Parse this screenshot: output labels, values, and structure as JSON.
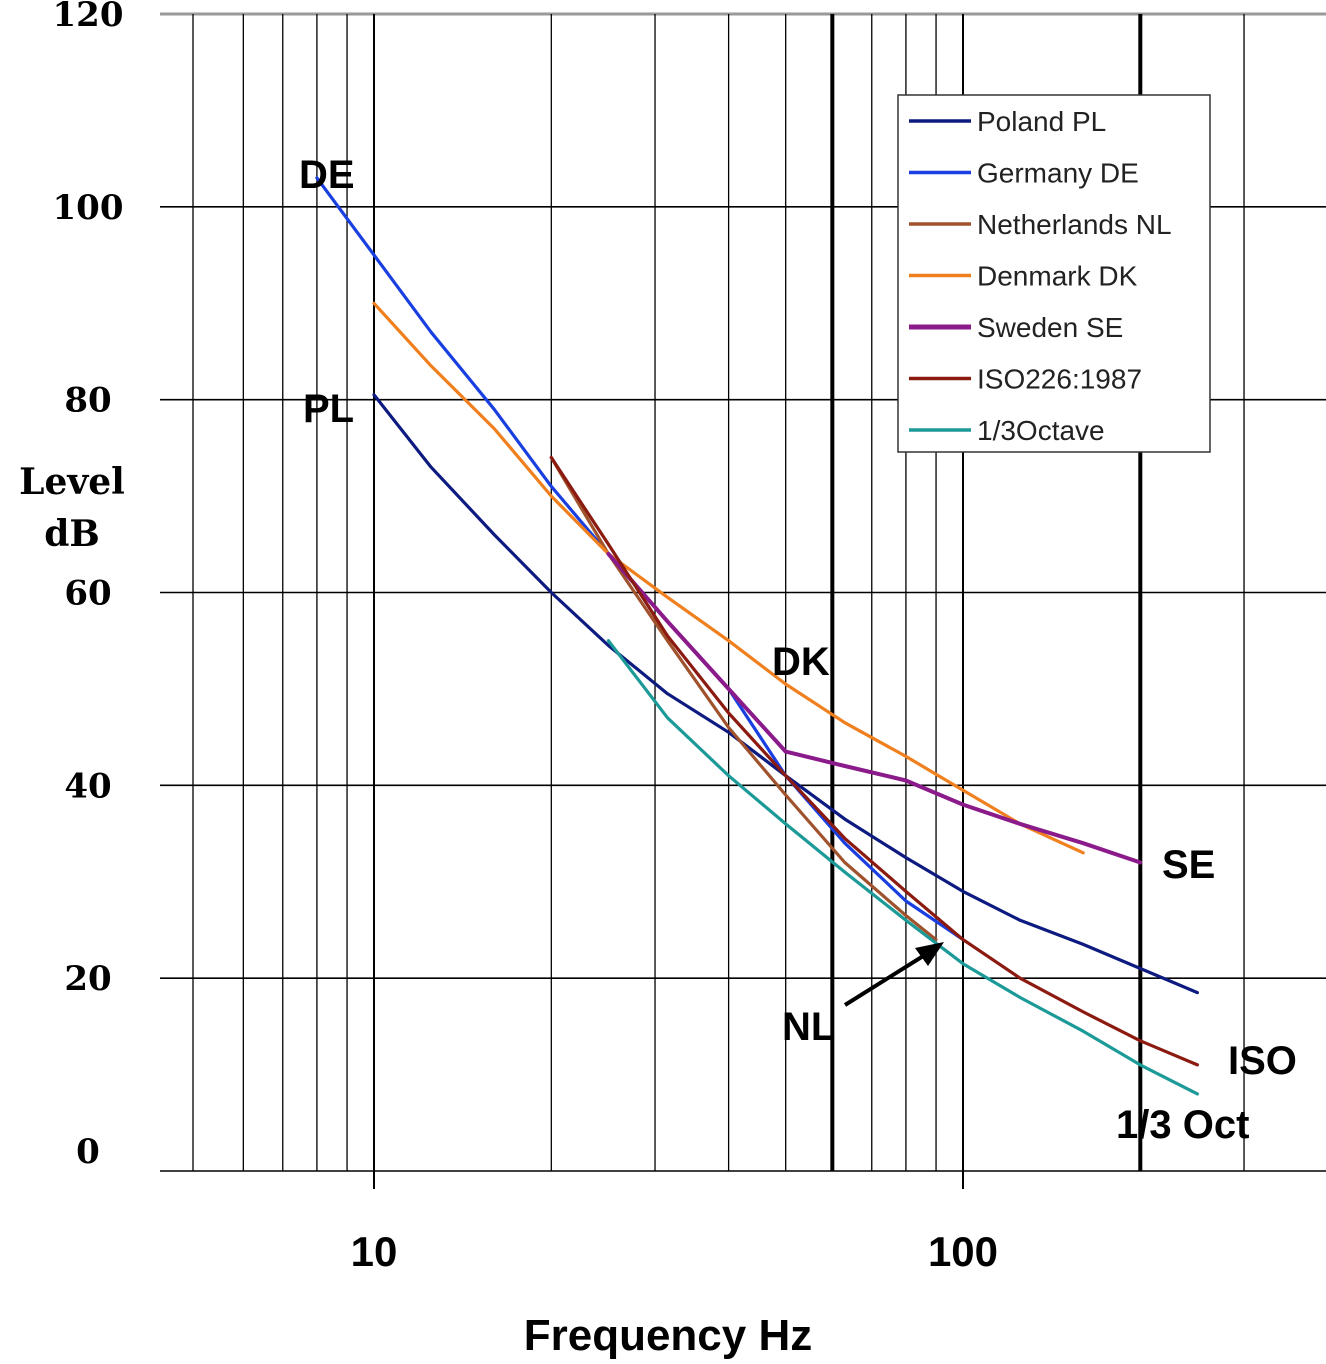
{
  "chart_data": {
    "type": "line",
    "xlabel": "Frequency Hz",
    "ylabel": [
      "Level",
      "dB"
    ],
    "x_scale": "log",
    "xlim": [
      5,
      300
    ],
    "ylim": [
      0,
      120
    ],
    "grid": true,
    "legend_position": "top-right",
    "x_tick_labels": [
      {
        "value": 10,
        "label": "10"
      },
      {
        "value": 100,
        "label": "100"
      }
    ],
    "y_tick_labels": [
      {
        "value": 0,
        "label": "0"
      },
      {
        "value": 20,
        "label": "20"
      },
      {
        "value": 40,
        "label": "40"
      },
      {
        "value": 60,
        "label": "60"
      },
      {
        "value": 80,
        "label": "80"
      },
      {
        "value": 100,
        "label": "100"
      },
      {
        "value": 120,
        "label": "120"
      }
    ],
    "series": [
      {
        "name": "Poland PL",
        "color": "#0d1a80",
        "x": [
          10,
          12.5,
          16,
          20,
          25,
          31.5,
          40,
          50,
          63,
          80,
          100,
          125,
          160,
          200,
          250
        ],
        "y": [
          80.5,
          73,
          66,
          60,
          54.5,
          49.5,
          45.5,
          41,
          36.5,
          32.5,
          29,
          26,
          23.5,
          21,
          18.5
        ]
      },
      {
        "name": "Germany DE",
        "color": "#1a3fe0",
        "x": [
          8,
          10,
          12.5,
          16,
          20,
          25,
          31.5,
          40,
          50,
          63,
          80,
          100
        ],
        "y": [
          103,
          95,
          87,
          79,
          71,
          64,
          57,
          50,
          41,
          34,
          28,
          24
        ]
      },
      {
        "name": "Netherlands NL",
        "color": "#a0522d",
        "x": [
          20,
          25,
          31.5,
          40,
          50,
          63,
          80,
          90
        ],
        "y": [
          74,
          64,
          55,
          46,
          39,
          32,
          26.5,
          24
        ]
      },
      {
        "name": "Denmark DK",
        "color": "#f07f1e",
        "x": [
          10,
          12.5,
          16,
          20,
          25,
          31.5,
          40,
          50,
          63,
          80,
          100,
          125,
          160
        ],
        "y": [
          90,
          83.5,
          77,
          70,
          64,
          59.5,
          55,
          50.5,
          46.5,
          43,
          39.5,
          36,
          33
        ]
      },
      {
        "name": "Sweden SE",
        "color": "#8b1a8b",
        "x": [
          25,
          31.5,
          40,
          50,
          63,
          80,
          100,
          125,
          160,
          200
        ],
        "y": [
          64,
          57,
          50,
          43.5,
          42,
          40.5,
          38,
          36,
          34,
          32
        ]
      },
      {
        "name": "ISO226:1987",
        "color": "#8b1a10",
        "x": [
          20,
          25,
          31.5,
          40,
          50,
          63,
          80,
          100,
          125,
          160,
          200,
          250
        ],
        "y": [
          74,
          65,
          55.5,
          47.5,
          41,
          34.5,
          29,
          24,
          20,
          16.5,
          13.5,
          11
        ]
      },
      {
        "name": "1/3Octave",
        "color": "#1b9a98",
        "x": [
          25,
          31.5,
          40,
          50,
          63,
          80,
          100,
          125,
          160,
          200,
          250
        ],
        "y": [
          55,
          47,
          41,
          36,
          31,
          26,
          21.5,
          18,
          14.5,
          11,
          8
        ]
      }
    ],
    "annotations": [
      "DE",
      "PL",
      "DK",
      "SE",
      "NL",
      "ISO",
      "1/3 Oct"
    ]
  }
}
